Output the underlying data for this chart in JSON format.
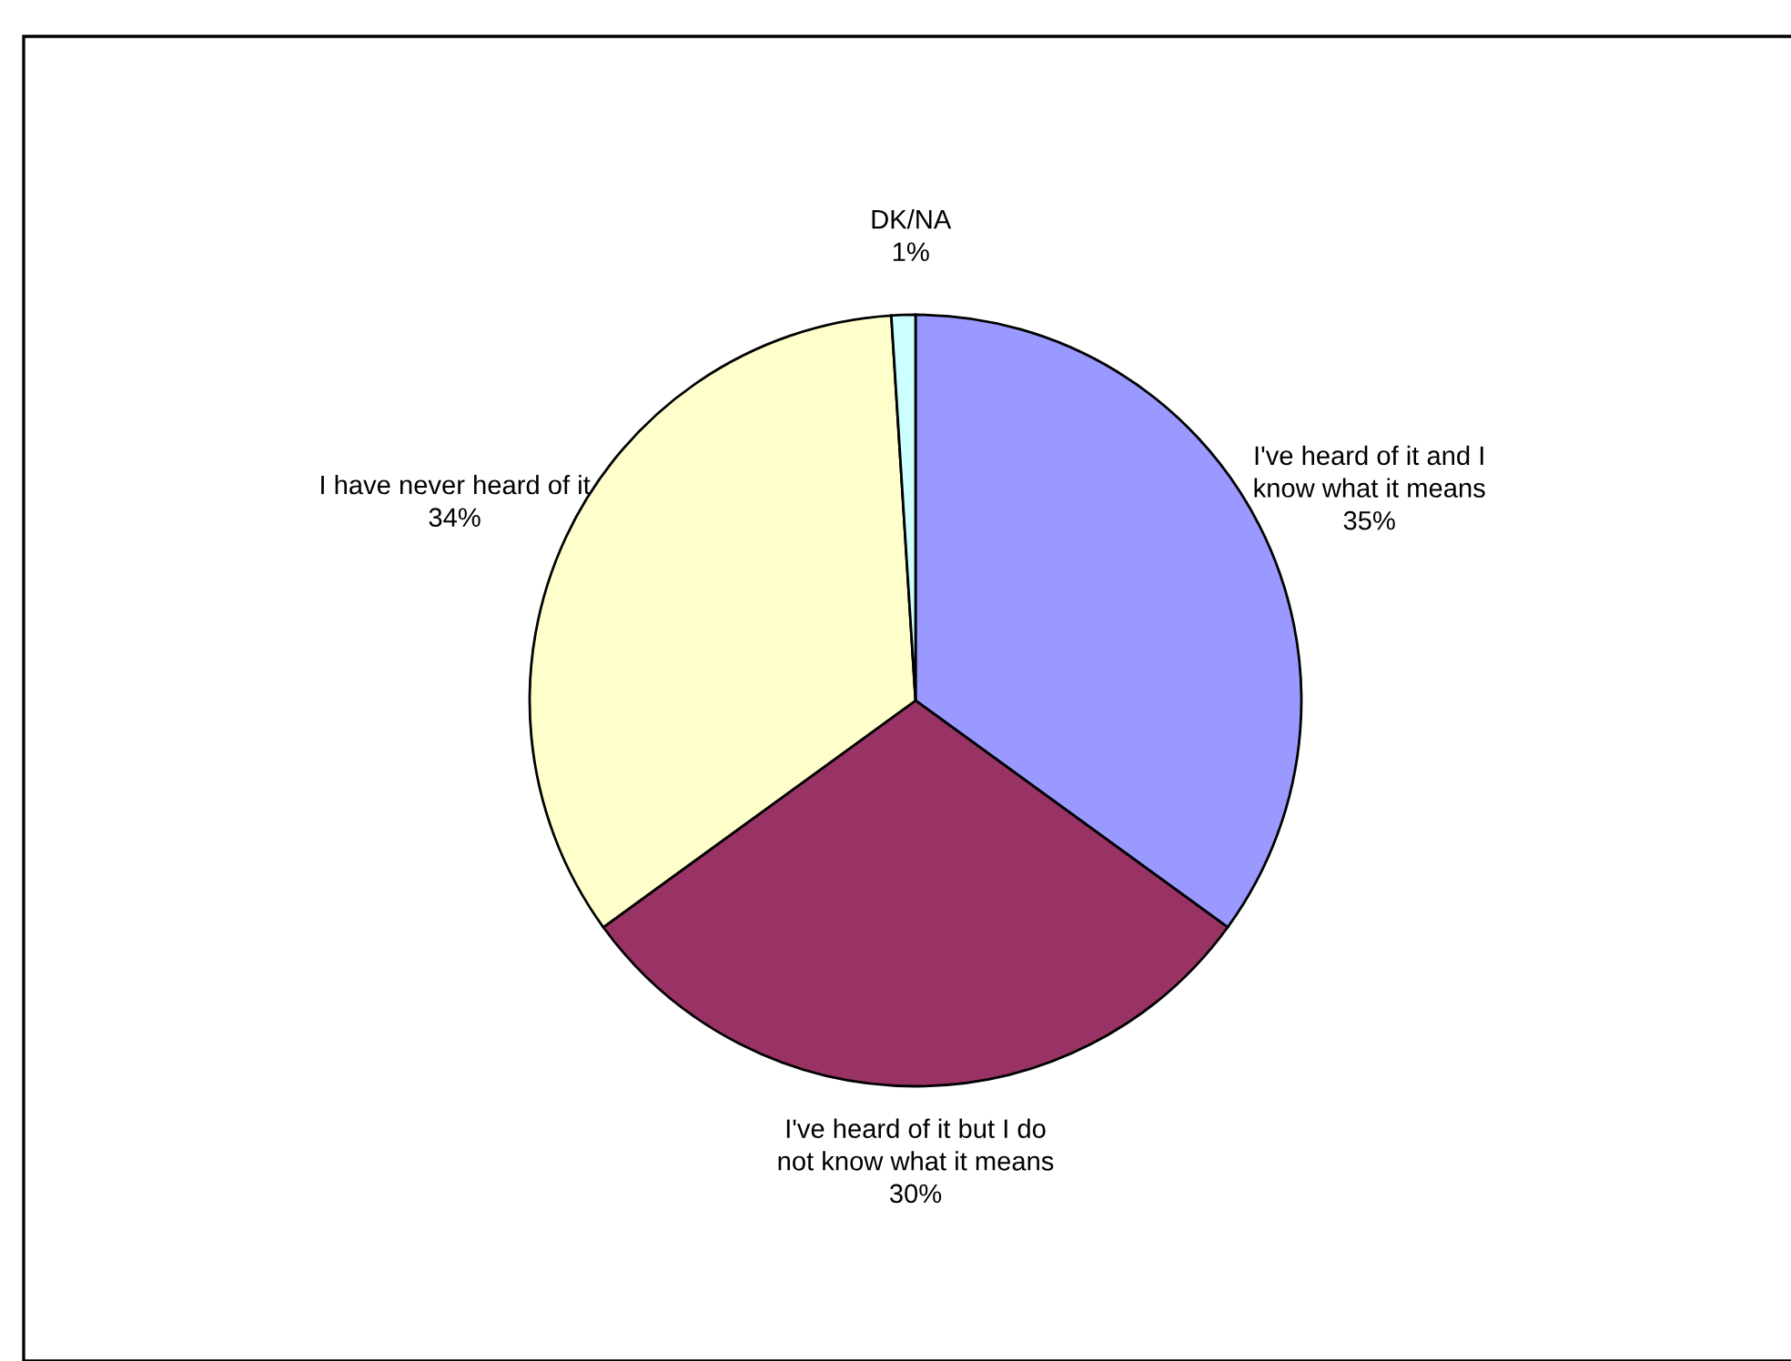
{
  "chart_data": {
    "type": "pie",
    "categories": [
      "I've heard of it and I\nknow what it means",
      "I've heard of it but I do\nnot know what it means",
      "I have never heard of it",
      "DK/NA"
    ],
    "values": [
      35,
      30,
      34,
      1
    ],
    "colors": [
      "#9999ff",
      "#993366",
      "#ffffcc",
      "#ccffff"
    ],
    "value_labels": [
      "35%",
      "30%",
      "34%",
      "1%"
    ]
  }
}
